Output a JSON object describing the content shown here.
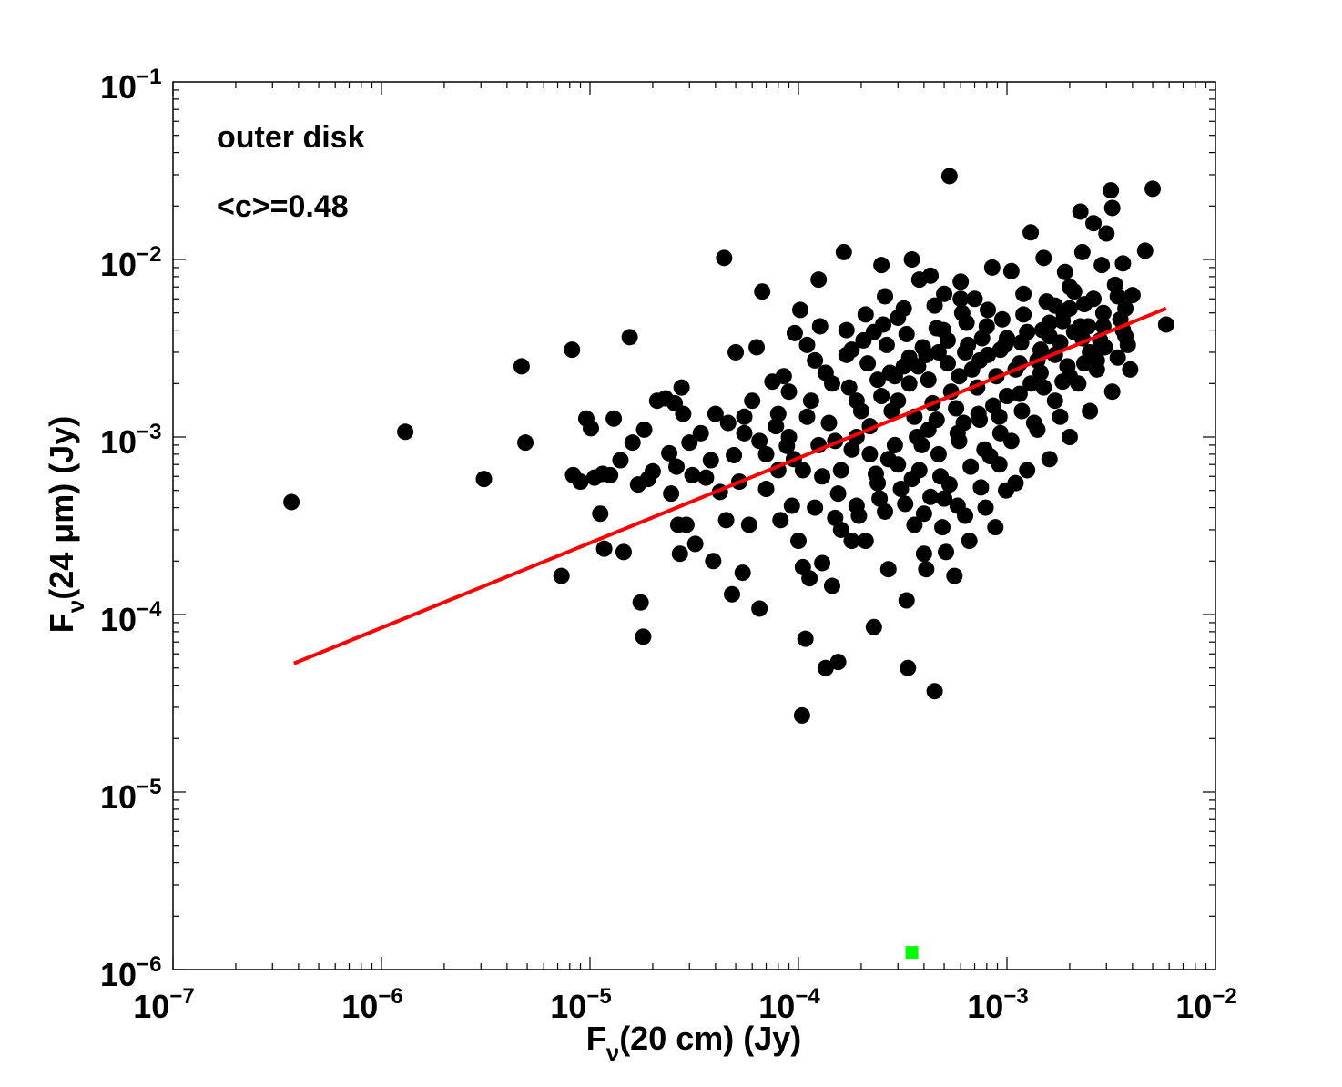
{
  "chart_data": {
    "type": "scatter",
    "xscale": "log",
    "yscale": "log",
    "xlim": [
      1e-07,
      0.01
    ],
    "ylim": [
      1e-06,
      0.1
    ],
    "grid": false,
    "xlabel": {
      "main": "F",
      "sub": "ν",
      "rest": "(20 cm) (Jy)"
    },
    "ylabel": {
      "main": "F",
      "sub": "ν",
      "rest": "(24 μm) (Jy)"
    },
    "x_ticks": [
      {
        "value": 1e-07,
        "base": "10",
        "exp": "−7"
      },
      {
        "value": 1e-06,
        "base": "10",
        "exp": "−6"
      },
      {
        "value": 1e-05,
        "base": "10",
        "exp": "−5"
      },
      {
        "value": 0.0001,
        "base": "10",
        "exp": "−4"
      },
      {
        "value": 0.001,
        "base": "10",
        "exp": "−3"
      },
      {
        "value": 0.01,
        "base": "10",
        "exp": "−2"
      }
    ],
    "y_ticks": [
      {
        "value": 1e-06,
        "base": "10",
        "exp": "−6"
      },
      {
        "value": 1e-05,
        "base": "10",
        "exp": "−5"
      },
      {
        "value": 0.0001,
        "base": "10",
        "exp": "−4"
      },
      {
        "value": 0.001,
        "base": "10",
        "exp": "−3"
      },
      {
        "value": 0.01,
        "base": "10",
        "exp": "−2"
      },
      {
        "value": 0.1,
        "base": "10",
        "exp": "−1"
      }
    ],
    "annotations": [
      "outer disk",
      "<c>=0.48"
    ],
    "marker_color": "#000000",
    "points": [
      [
        3.7e-07,
        0.00043
      ],
      [
        1.3e-06,
        0.00107
      ],
      [
        3.1e-06,
        0.00058
      ],
      [
        4.7e-06,
        0.0025
      ],
      [
        4.9e-06,
        0.00093
      ],
      [
        7.3e-06,
        0.000165
      ],
      [
        8.2e-06,
        0.0031
      ],
      [
        8.3e-06,
        0.00061
      ],
      [
        9e-06,
        0.00056
      ],
      [
        9.6e-06,
        0.00127
      ],
      [
        1.01e-05,
        0.00112
      ],
      [
        1.05e-05,
        0.00059
      ],
      [
        1.12e-05,
        0.00037
      ],
      [
        1.15e-05,
        0.00062
      ],
      [
        1.17e-05,
        0.000235
      ],
      [
        1.25e-05,
        0.00061
      ],
      [
        1.3e-05,
        0.00127
      ],
      [
        1.4e-05,
        0.00074
      ],
      [
        1.45e-05,
        0.000225
      ],
      [
        1.55e-05,
        0.00365
      ],
      [
        1.6e-05,
        0.00093
      ],
      [
        1.7e-05,
        0.00054
      ],
      [
        1.75e-05,
        0.000117
      ],
      [
        1.8e-05,
        7.5e-05
      ],
      [
        1.82e-05,
        0.0011
      ],
      [
        1.9e-05,
        0.00058
      ],
      [
        2e-05,
        0.00064
      ],
      [
        2.1e-05,
        0.0016
      ],
      [
        2.3e-05,
        0.00165
      ],
      [
        2.4e-05,
        0.00081
      ],
      [
        2.45e-05,
        0.00048
      ],
      [
        2.55e-05,
        0.00155
      ],
      [
        2.6e-05,
        0.00068
      ],
      [
        2.65e-05,
        0.00032
      ],
      [
        2.7e-05,
        0.00022
      ],
      [
        2.75e-05,
        0.0019
      ],
      [
        2.8e-05,
        0.00135
      ],
      [
        2.9e-05,
        0.00032
      ],
      [
        3e-05,
        0.00093
      ],
      [
        3.1e-05,
        0.00061
      ],
      [
        3.2e-05,
        0.00025
      ],
      [
        3.4e-05,
        0.00105
      ],
      [
        3.6e-05,
        0.00059
      ],
      [
        3.8e-05,
        0.00074
      ],
      [
        3.9e-05,
        0.0002
      ],
      [
        4e-05,
        0.00135
      ],
      [
        4.2e-05,
        0.00049
      ],
      [
        4.4e-05,
        0.0102
      ],
      [
        4.5e-05,
        0.00034
      ],
      [
        4.6e-05,
        0.0012
      ],
      [
        4.8e-05,
        0.00013
      ],
      [
        4.9e-05,
        0.00079
      ],
      [
        5e-05,
        0.003
      ],
      [
        5.2e-05,
        0.00056
      ],
      [
        5.4e-05,
        0.000172
      ],
      [
        5.5e-05,
        0.00105
      ],
      [
        5.8e-05,
        0.00032
      ],
      [
        6e-05,
        0.0016
      ],
      [
        6.3e-05,
        0.0032
      ],
      [
        6.5e-05,
        0.000108
      ],
      [
        6.7e-05,
        0.0066
      ],
      [
        7e-05,
        0.00051
      ],
      [
        7.5e-05,
        0.00205
      ],
      [
        8e-05,
        0.00135
      ],
      [
        8.2e-05,
        0.00034
      ],
      [
        8.5e-05,
        0.0022
      ],
      [
        8.8e-05,
        0.00089
      ],
      [
        9.3e-05,
        0.00041
      ],
      [
        9.6e-05,
        0.00385
      ],
      [
        0.0001,
        0.00026
      ],
      [
        0.000102,
        0.0052
      ],
      [
        0.000104,
        2.7e-05
      ],
      [
        0.000105,
        0.000185
      ],
      [
        0.000108,
        7.3e-05
      ],
      [
        0.00011,
        0.0033
      ],
      [
        0.000113,
        0.00016
      ],
      [
        0.00012,
        0.0027
      ],
      [
        0.000125,
        0.0077
      ],
      [
        0.000127,
        0.0042
      ],
      [
        0.00013,
        0.000195
      ],
      [
        0.000135,
        5e-05
      ],
      [
        0.000145,
        0.000145
      ],
      [
        0.00015,
        0.00035
      ],
      [
        0.000155,
        5.4e-05
      ],
      [
        0.000165,
        0.011
      ],
      [
        0.00017,
        0.004
      ],
      [
        0.00018,
        0.00026
      ],
      [
        0.00019,
        0.00041
      ],
      [
        0.00021,
        0.0049
      ],
      [
        0.00023,
        8.5e-05
      ],
      [
        0.00025,
        0.0093
      ],
      [
        0.00026,
        0.0062
      ],
      [
        0.00027,
        0.00018
      ],
      [
        0.00029,
        0.0022
      ],
      [
        0.00032,
        0.0053
      ],
      [
        0.00033,
        0.00012
      ],
      [
        0.000335,
        5e-05
      ],
      [
        0.00035,
        0.01
      ],
      [
        0.00036,
        0.00032
      ],
      [
        0.00038,
        0.0077
      ],
      [
        0.0004,
        0.00022
      ],
      [
        0.00041,
        0.00018
      ],
      [
        0.00043,
        0.0081
      ],
      [
        0.00045,
        3.7e-05
      ],
      [
        0.00046,
        0.0041
      ],
      [
        0.00049,
        0.00031
      ],
      [
        0.0005,
        0.0064
      ],
      [
        0.00051,
        0.000225
      ],
      [
        0.00053,
        0.0295
      ],
      [
        0.00056,
        0.000165
      ],
      [
        0.00058,
        0.00041
      ],
      [
        0.0006,
        0.0075
      ],
      [
        0.00063,
        0.003
      ],
      [
        0.00066,
        0.00026
      ],
      [
        0.0007,
        0.006
      ],
      [
        0.00075,
        0.00052
      ],
      [
        0.0008,
        0.0042
      ],
      [
        0.00085,
        0.009
      ],
      [
        0.00088,
        0.00031
      ],
      [
        0.00092,
        0.0007
      ],
      [
        0.00098,
        0.0033
      ],
      [
        0.00105,
        0.0086
      ],
      [
        0.0011,
        0.00055
      ],
      [
        0.0012,
        0.0064
      ],
      [
        0.0013,
        0.0142
      ],
      [
        0.0014,
        0.0011
      ],
      [
        0.0015,
        0.0102
      ],
      [
        0.0016,
        0.0037
      ],
      [
        0.0017,
        0.0055
      ],
      [
        0.0018,
        0.0013
      ],
      [
        0.0019,
        0.0085
      ],
      [
        0.002,
        0.0022
      ],
      [
        0.0021,
        0.0066
      ],
      [
        0.00225,
        0.0186
      ],
      [
        0.0023,
        0.011
      ],
      [
        0.00245,
        0.0042
      ],
      [
        0.0026,
        0.016
      ],
      [
        0.0027,
        0.0027
      ],
      [
        0.00285,
        0.0093
      ],
      [
        0.003,
        0.014
      ],
      [
        0.00315,
        0.0245
      ],
      [
        0.0032,
        0.0195
      ],
      [
        0.0034,
        0.0062
      ],
      [
        0.0036,
        0.0095
      ],
      [
        0.0038,
        0.0033
      ],
      [
        0.004,
        0.0063
      ],
      [
        0.0046,
        0.0112
      ],
      [
        0.005,
        0.025
      ],
      [
        0.0058,
        0.0043
      ],
      [
        0.00022,
        0.0008
      ],
      [
        0.00028,
        0.0014
      ],
      [
        0.00034,
        0.002
      ],
      [
        0.00042,
        0.0011
      ],
      [
        0.00054,
        0.0018
      ],
      [
        0.00068,
        0.0024
      ],
      [
        0.00086,
        0.0015
      ],
      [
        0.00115,
        0.0026
      ],
      [
        0.00145,
        0.0031
      ],
      [
        0.00185,
        0.0045
      ],
      [
        0.0023,
        0.0036
      ],
      [
        0.0029,
        0.005
      ],
      [
        0.0035,
        0.0046
      ],
      [
        0.00016,
        0.00065
      ],
      [
        0.00019,
        0.001
      ],
      [
        0.00024,
        0.00055
      ],
      [
        0.0003,
        0.0007
      ],
      [
        0.00039,
        0.0009
      ],
      [
        0.00048,
        0.0006
      ],
      [
        0.00062,
        0.0012
      ],
      [
        0.00078,
        0.00085
      ],
      [
        0.001,
        0.0017
      ],
      [
        0.0013,
        0.002
      ],
      [
        0.0017,
        0.0029
      ],
      [
        0.0021,
        0.0039
      ],
      [
        0.00014,
        0.0012
      ],
      [
        0.000175,
        0.0019
      ],
      [
        0.000215,
        0.0026
      ],
      [
        0.000265,
        0.0033
      ],
      [
        0.00033,
        0.0038
      ],
      [
        0.00041,
        0.0029
      ],
      [
        0.00052,
        0.0035
      ],
      [
        0.00064,
        0.0044
      ],
      [
        0.00081,
        0.0052
      ],
      [
        0.000125,
        0.0009
      ],
      [
        0.000155,
        0.00048
      ],
      [
        0.000195,
        0.00036
      ],
      [
        0.000245,
        0.00045
      ],
      [
        0.00031,
        0.00051
      ],
      [
        0.00038,
        0.00065
      ],
      [
        0.00047,
        0.0008
      ],
      [
        0.00059,
        0.00095
      ],
      [
        0.00074,
        0.00125
      ],
      [
        0.00093,
        0.00105
      ],
      [
        0.00118,
        0.0014
      ],
      [
        0.0015,
        0.0019
      ],
      [
        0.00195,
        0.0025
      ],
      [
        0.0025,
        0.003
      ],
      [
        0.000115,
        0.0016
      ],
      [
        0.000135,
        0.0023
      ],
      [
        0.00017,
        0.0029
      ],
      [
        0.000205,
        0.0035
      ],
      [
        0.000255,
        0.0043
      ],
      [
        0.00032,
        0.0025
      ],
      [
        0.000395,
        0.0032
      ],
      [
        0.000495,
        0.004
      ],
      [
        0.00061,
        0.005
      ],
      [
        0.00076,
        0.0036
      ],
      [
        0.00095,
        0.0046
      ],
      [
        0.0012,
        0.0049
      ],
      [
        0.00155,
        0.0058
      ],
      [
        0.002,
        0.0053
      ],
      [
        0.0026,
        0.006
      ],
      [
        0.0033,
        0.0072
      ],
      [
        9e-05,
        0.001
      ],
      [
        8e-05,
        0.00065
      ],
      [
        7e-05,
        0.0008
      ],
      [
        9e-05,
        0.0018
      ],
      [
        0.000105,
        0.00065
      ],
      [
        0.0002,
        0.0014
      ],
      [
        0.00025,
        0.0017
      ],
      [
        0.00036,
        0.0013
      ],
      [
        0.00044,
        0.00155
      ],
      [
        0.00057,
        0.00145
      ],
      [
        0.00072,
        0.0019
      ],
      [
        0.00089,
        0.0022
      ],
      [
        0.0011,
        0.0024
      ],
      [
        0.0014,
        0.0027
      ],
      [
        0.0018,
        0.0034
      ],
      [
        0.00225,
        0.0042
      ],
      [
        0.0028,
        0.0035
      ],
      [
        0.0036,
        0.004
      ],
      [
        0.0006,
        0.006
      ],
      [
        0.00045,
        0.0055
      ],
      [
        0.0003,
        0.0047
      ],
      [
        0.00023,
        0.0039
      ],
      [
        0.00018,
        0.0031
      ],
      [
        0.000145,
        0.002
      ],
      [
        0.00011,
        0.0013
      ],
      [
        0.00027,
        0.00075
      ],
      [
        0.00035,
        0.00058
      ],
      [
        0.00043,
        0.00046
      ],
      [
        0.00053,
        0.00054
      ],
      [
        0.00067,
        0.00068
      ],
      [
        0.00083,
        0.00078
      ],
      [
        0.00105,
        0.00095
      ],
      [
        0.00135,
        0.0012
      ],
      [
        0.0017,
        0.0016
      ],
      [
        0.0022,
        0.002
      ],
      [
        0.0027,
        0.0024
      ],
      [
        0.0034,
        0.0028
      ],
      [
        0.00018,
        0.00085
      ],
      [
        0.00022,
        0.00115
      ],
      [
        0.000275,
        0.0023
      ],
      [
        0.00034,
        0.0028
      ],
      [
        0.00042,
        0.0021
      ],
      [
        0.00052,
        0.0026
      ],
      [
        0.00065,
        0.0033
      ],
      [
        0.00081,
        0.0029
      ],
      [
        0.001,
        0.0036
      ],
      [
        0.00125,
        0.0039
      ],
      [
        0.0016,
        0.0044
      ],
      [
        0.002,
        0.007
      ],
      [
        0.00012,
        0.0004
      ],
      [
        0.00016,
        0.0003
      ],
      [
        0.00021,
        0.00026
      ],
      [
        0.00026,
        0.00038
      ],
      [
        0.000325,
        0.00042
      ],
      [
        0.0004,
        0.00037
      ],
      [
        0.0005,
        0.00045
      ],
      [
        0.00063,
        0.00036
      ],
      [
        0.00079,
        0.0004
      ],
      [
        0.00099,
        0.0005
      ],
      [
        0.00125,
        0.00065
      ],
      [
        0.0016,
        0.00075
      ],
      [
        0.002,
        0.001
      ],
      [
        0.0025,
        0.0014
      ],
      [
        0.0032,
        0.0018
      ],
      [
        0.0039,
        0.0024
      ],
      [
        5.5e-05,
        0.0013
      ],
      [
        6.5e-05,
        0.00095
      ],
      [
        7.8e-05,
        0.00115
      ],
      [
        9.5e-05,
        0.00075
      ],
      [
        0.00013,
        0.0006
      ],
      [
        0.00015,
        0.00095
      ],
      [
        0.000235,
        0.00062
      ],
      [
        0.00029,
        0.0009
      ],
      [
        0.00037,
        0.001
      ],
      [
        0.00046,
        0.00125
      ],
      [
        0.00058,
        0.00105
      ],
      [
        0.00073,
        0.00135
      ],
      [
        0.00092,
        0.0013
      ],
      [
        0.00115,
        0.00175
      ],
      [
        0.00145,
        0.0023
      ],
      [
        0.00185,
        0.00205
      ],
      [
        0.00235,
        0.0026
      ],
      [
        0.00295,
        0.0032
      ],
      [
        0.0037,
        0.0037
      ],
      [
        0.00019,
        0.0016
      ],
      [
        0.00024,
        0.0021
      ],
      [
        0.0003,
        0.0016
      ],
      [
        0.000375,
        0.0025
      ],
      [
        0.00047,
        0.003
      ],
      [
        0.00059,
        0.0022
      ],
      [
        0.00074,
        0.0027
      ],
      [
        0.00093,
        0.0031
      ],
      [
        0.00117,
        0.0034
      ],
      [
        0.00148,
        0.004
      ],
      [
        0.00187,
        0.005
      ],
      [
        0.00235,
        0.0056
      ],
      [
        0.0029,
        0.0042
      ],
      [
        0.0037,
        0.0053
      ]
    ],
    "highlight_points": [
      {
        "x": 0.00035,
        "y": 1.25e-06,
        "color": "#00ff00",
        "marker": "square"
      }
    ],
    "fit_line": {
      "color": "#ff0000",
      "points": [
        [
          3.8e-07,
          5.3e-05
        ],
        [
          0.0058,
          0.0053
        ]
      ]
    }
  }
}
